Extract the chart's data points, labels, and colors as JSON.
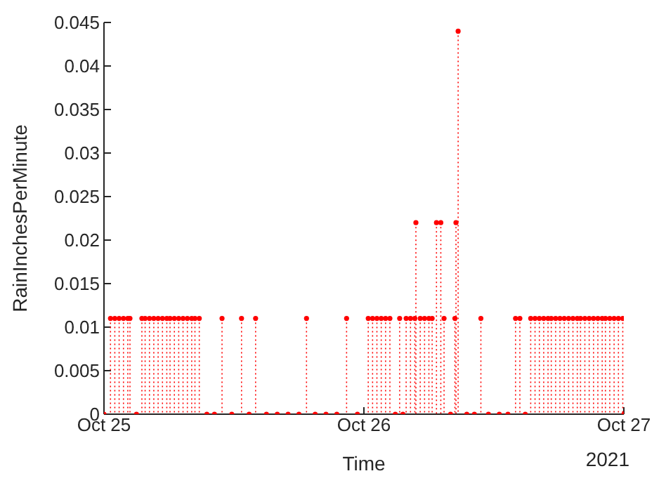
{
  "chart_data": {
    "type": "lollipop",
    "xlabel": "Time",
    "ylabel": "RainInchesPerMinute",
    "annotations": [
      "2021"
    ],
    "xlim": [
      "2021-10-25",
      "2021-10-27"
    ],
    "xticks": [
      {
        "value": "2021-10-25",
        "label": "Oct 25"
      },
      {
        "value": "2021-10-26",
        "label": "Oct 26"
      },
      {
        "value": "2021-10-27",
        "label": "Oct 27"
      }
    ],
    "ylim": [
      0,
      0.045
    ],
    "yticks": [
      0,
      0.005,
      0.01,
      0.015,
      0.02,
      0.025,
      0.03,
      0.035,
      0.04,
      0.045
    ],
    "marker": "circle",
    "line_style": "dotted",
    "series": [
      {
        "color": "#ff0000",
        "x": [
          "2021-10-25T00:00",
          "2021-10-25T00:36",
          "2021-10-25T01:00",
          "2021-10-25T01:24",
          "2021-10-25T01:48",
          "2021-10-25T02:12",
          "2021-10-25T02:24",
          "2021-10-25T03:00",
          "2021-10-25T03:30",
          "2021-10-25T03:48",
          "2021-10-25T04:12",
          "2021-10-25T04:36",
          "2021-10-25T05:00",
          "2021-10-25T05:24",
          "2021-10-25T05:48",
          "2021-10-25T06:06",
          "2021-10-25T06:30",
          "2021-10-25T06:54",
          "2021-10-25T07:18",
          "2021-10-25T07:42",
          "2021-10-25T08:06",
          "2021-10-25T08:24",
          "2021-10-25T08:48",
          "2021-10-25T09:30",
          "2021-10-25T10:12",
          "2021-10-25T10:54",
          "2021-10-25T11:48",
          "2021-10-25T12:42",
          "2021-10-25T13:24",
          "2021-10-25T14:00",
          "2021-10-25T15:00",
          "2021-10-25T16:00",
          "2021-10-25T17:00",
          "2021-10-25T18:00",
          "2021-10-25T18:42",
          "2021-10-25T19:30",
          "2021-10-25T20:30",
          "2021-10-25T21:30",
          "2021-10-25T22:24",
          "2021-10-25T23:24",
          "2021-10-26T00:24",
          "2021-10-26T00:48",
          "2021-10-26T01:12",
          "2021-10-26T01:36",
          "2021-10-26T02:00",
          "2021-10-26T02:24",
          "2021-10-26T02:54",
          "2021-10-26T03:18",
          "2021-10-26T03:36",
          "2021-10-26T03:54",
          "2021-10-26T04:18",
          "2021-10-26T04:42",
          "2021-10-26T04:48",
          "2021-10-26T05:12",
          "2021-10-26T05:36",
          "2021-10-26T06:00",
          "2021-10-26T06:18",
          "2021-10-26T06:42",
          "2021-10-26T07:06",
          "2021-10-26T07:24",
          "2021-10-26T08:00",
          "2021-10-26T08:24",
          "2021-10-26T08:30",
          "2021-10-26T08:42",
          "2021-10-26T09:30",
          "2021-10-26T10:12",
          "2021-10-26T10:48",
          "2021-10-26T11:30",
          "2021-10-26T12:30",
          "2021-10-26T13:18",
          "2021-10-26T14:00",
          "2021-10-26T14:24",
          "2021-10-26T14:54",
          "2021-10-26T15:24",
          "2021-10-26T15:48",
          "2021-10-26T16:12",
          "2021-10-26T16:36",
          "2021-10-26T17:00",
          "2021-10-26T17:18",
          "2021-10-26T17:42",
          "2021-10-26T18:06",
          "2021-10-26T18:30",
          "2021-10-26T18:54",
          "2021-10-26T19:18",
          "2021-10-26T19:42",
          "2021-10-26T20:00",
          "2021-10-26T20:24",
          "2021-10-26T20:48",
          "2021-10-26T21:12",
          "2021-10-26T21:36",
          "2021-10-26T22:00",
          "2021-10-26T22:18",
          "2021-10-26T22:42",
          "2021-10-26T23:06",
          "2021-10-26T23:30",
          "2021-10-26T23:54",
          "2021-10-27T00:00"
        ],
        "values": [
          0,
          0.011,
          0.011,
          0.011,
          0.011,
          0.011,
          0.011,
          0,
          0.011,
          0.011,
          0.011,
          0.011,
          0.011,
          0.011,
          0.011,
          0.011,
          0.011,
          0.011,
          0.011,
          0.011,
          0.011,
          0.011,
          0.011,
          0,
          0,
          0.011,
          0,
          0.011,
          0,
          0.011,
          0,
          0,
          0,
          0,
          0.011,
          0,
          0,
          0,
          0.011,
          0,
          0.011,
          0.011,
          0.011,
          0.011,
          0.011,
          0.011,
          0,
          0.011,
          0,
          0.011,
          0.011,
          0.011,
          0.022,
          0.011,
          0.011,
          0.011,
          0.011,
          0.022,
          0.022,
          0.011,
          0,
          0.011,
          0.022,
          0.044,
          0,
          0,
          0.011,
          0,
          0,
          0,
          0.011,
          0.011,
          0,
          0.011,
          0.011,
          0.011,
          0.011,
          0.011,
          0.011,
          0.011,
          0.011,
          0.011,
          0.011,
          0.011,
          0.011,
          0.011,
          0.011,
          0.011,
          0.011,
          0.011,
          0.011,
          0.011,
          0.011,
          0.011,
          0.011,
          0.011,
          0
        ]
      }
    ]
  }
}
